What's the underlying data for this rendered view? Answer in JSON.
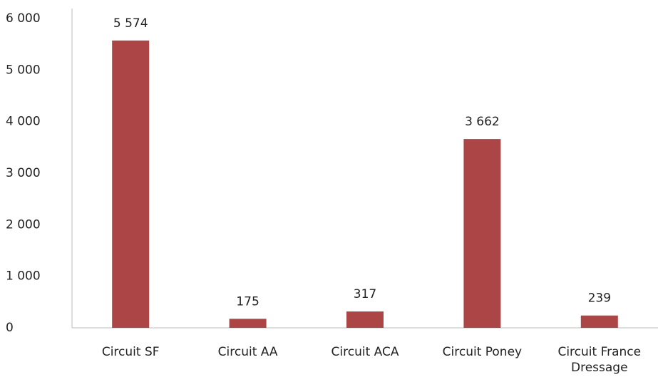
{
  "chart_data": {
    "type": "bar",
    "categories": [
      "Circuit SF",
      "Circuit AA",
      "Circuit ACA",
      "Circuit Poney",
      "Circuit France Dressage"
    ],
    "values": [
      5574,
      175,
      317,
      3662,
      239
    ],
    "value_labels": [
      "5 574",
      "175",
      "317",
      "3 662",
      "239"
    ],
    "color": "#ac4646",
    "ylim": [
      0,
      6000
    ],
    "yticks": [
      0,
      {
        "value": 1000,
        "label": "1 000"
      },
      {
        "value": 2000,
        "label": "2 000"
      },
      {
        "value": 3000,
        "label": "3 000"
      },
      {
        "value": 4000,
        "label": "4 000"
      },
      {
        "value": 5000,
        "label": "5 000"
      },
      {
        "value": 6000,
        "label": "6 000"
      }
    ],
    "grid": false
  }
}
